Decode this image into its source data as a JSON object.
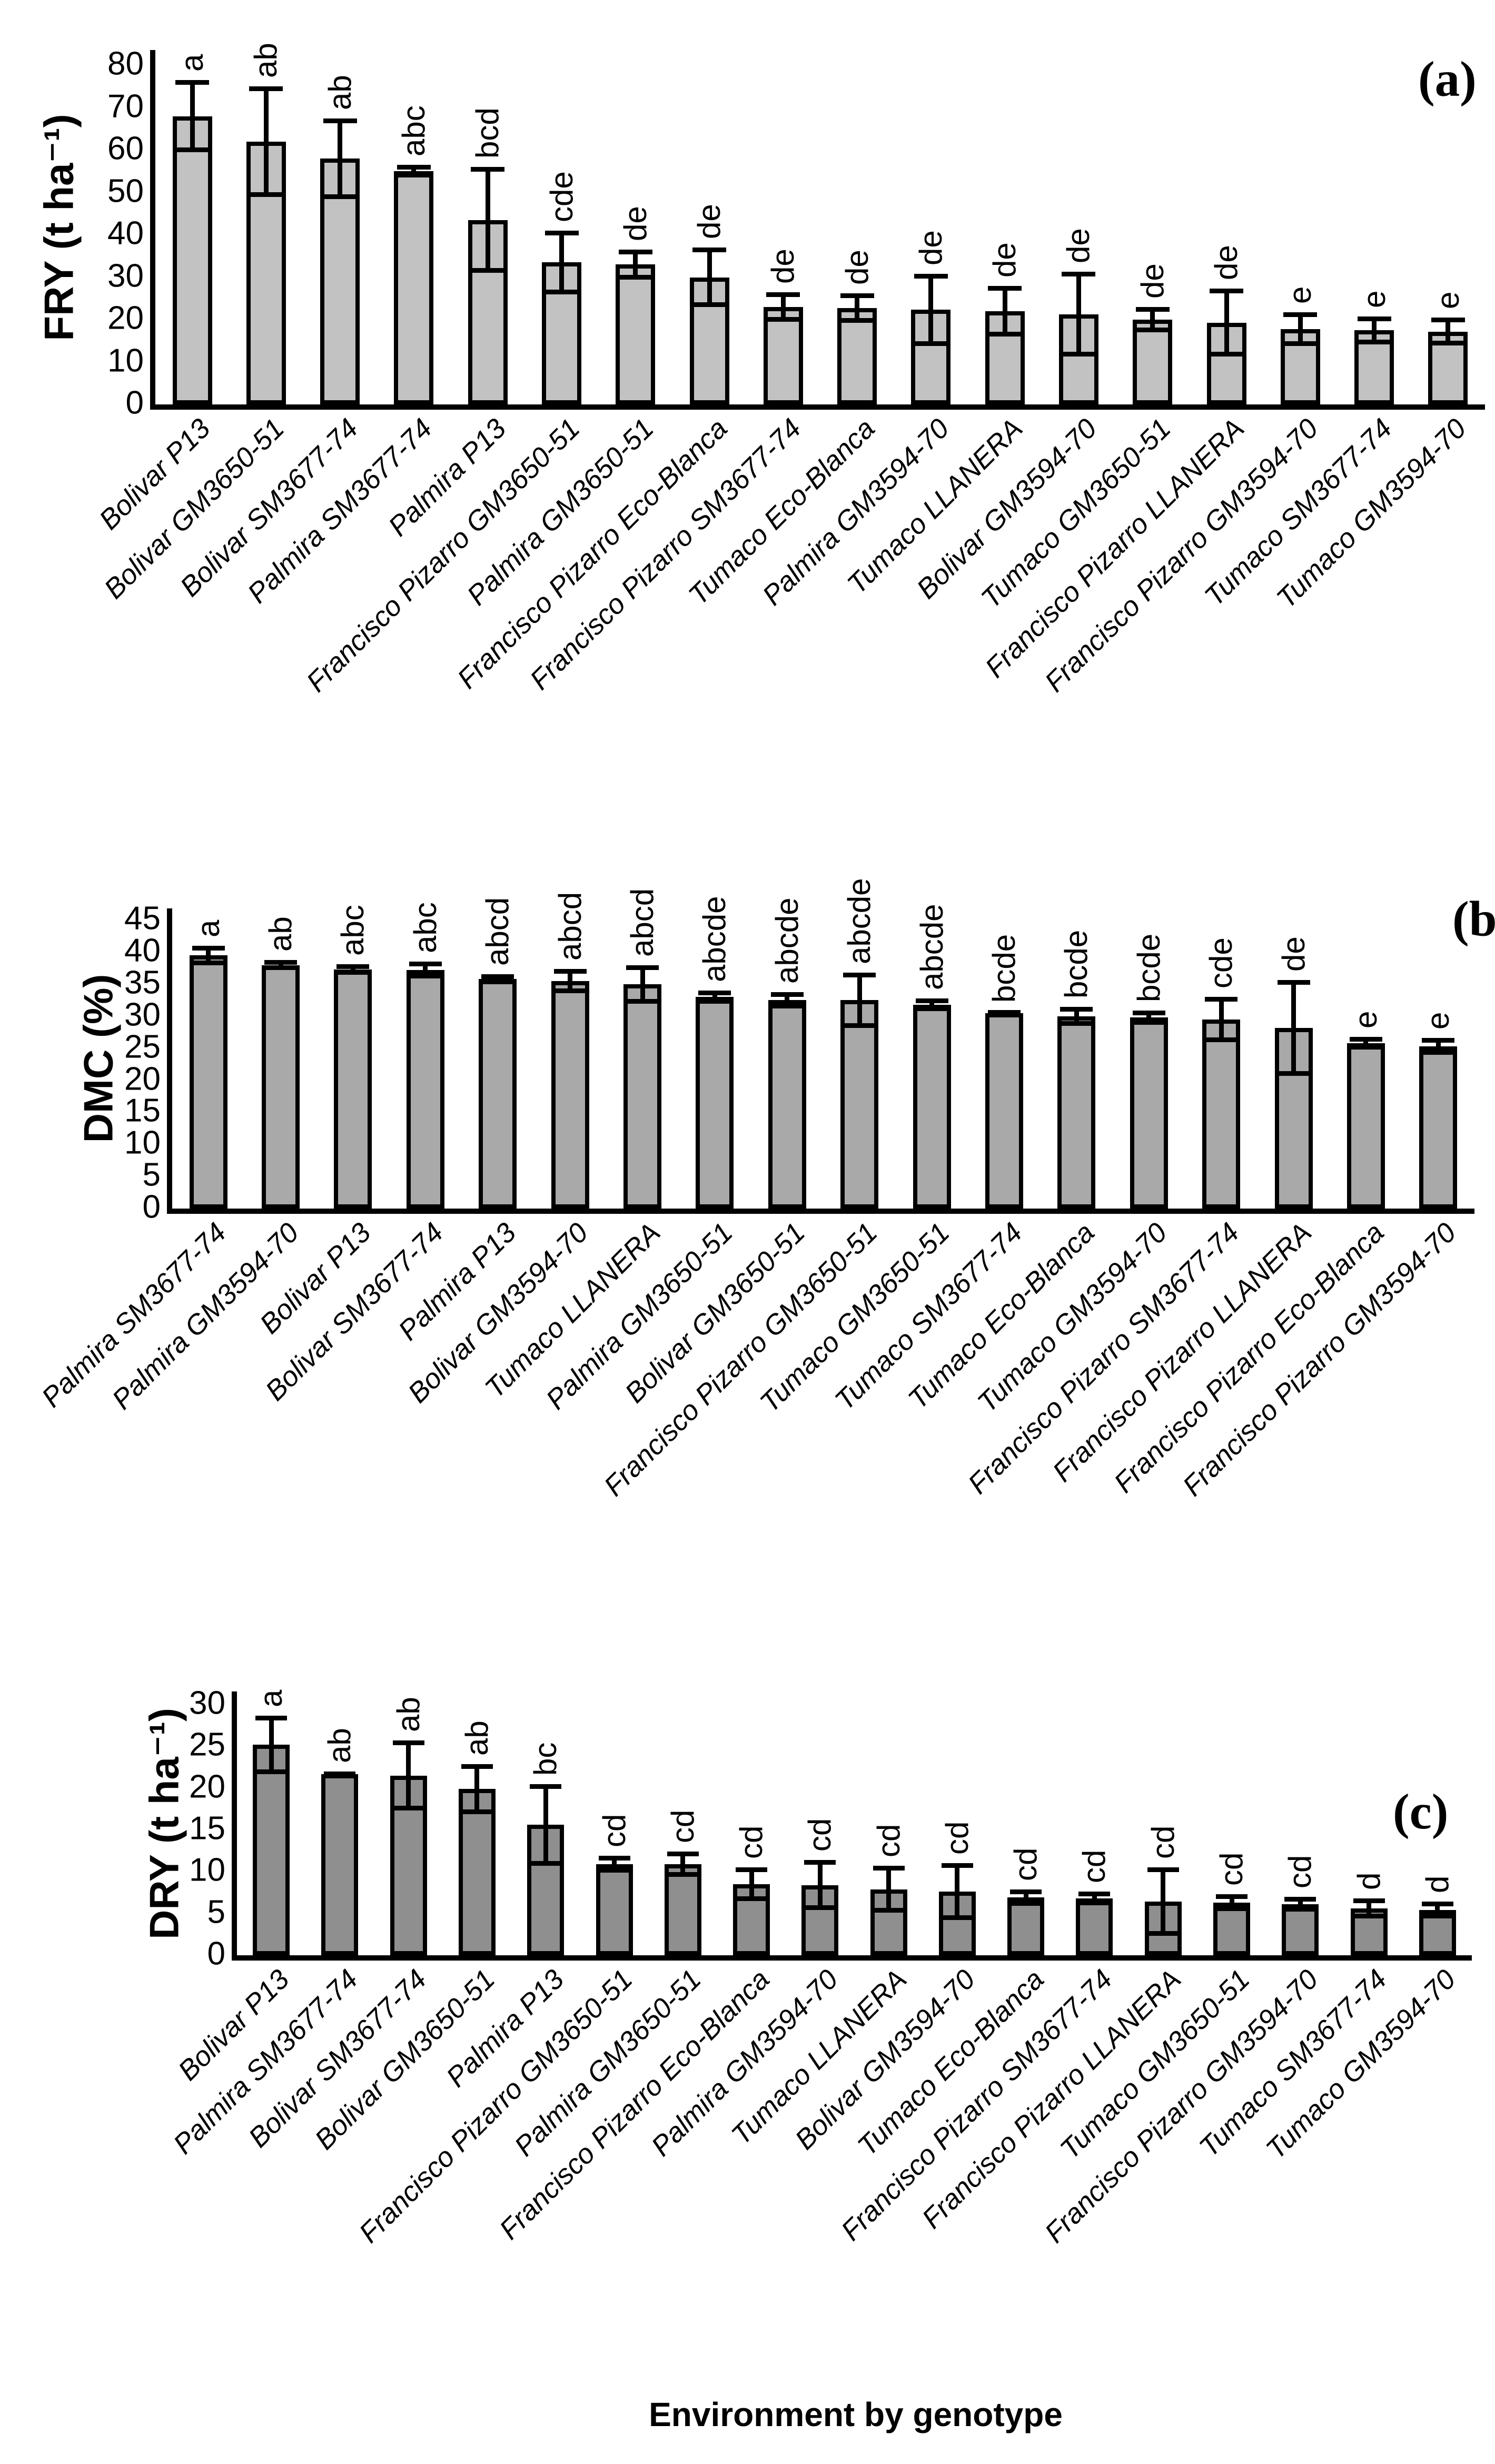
{
  "figure": {
    "xlabel": "Environment by genotype",
    "background_color": "#ffffff",
    "bar_outline_color": "#000000"
  },
  "chart_data": [
    {
      "id": "a",
      "type": "bar",
      "panel_label": "(a)",
      "ylabel": "FRY (t ha⁻¹)",
      "ylim": [
        0,
        80
      ],
      "ytick_step": 10,
      "yticks": [
        0,
        10,
        20,
        30,
        40,
        50,
        60,
        70,
        80
      ],
      "grid": false,
      "legend": null,
      "bar_color": "#c2c2c2",
      "categories": [
        "Bolivar P13",
        "Bolivar GM3650-51",
        "Bolivar SM3677-74",
        "Palmira SM3677-74",
        "Palmira P13",
        "Francisco Pizarro GM3650-51",
        "Palmira GM3650-51",
        "Francisco Pizarro Eco-Blanca",
        "Francisco Pizarro SM3677-74",
        "Tumaco Eco-Blanca",
        "Palmira GM3594-70",
        "Tumaco LLANERA",
        "Bolivar GM3594-70",
        "Tumaco GM3650-51",
        "Francisco Pizarro LLANERA",
        "Francisco Pizarro GM3594-70",
        "Tumaco SM3677-74",
        "Tumaco GM3594-70"
      ],
      "values": [
        68,
        62,
        58,
        55,
        43.5,
        33.5,
        33,
        30,
        23,
        22.7,
        22.3,
        22,
        21.3,
        20,
        19.3,
        17.8,
        17.5,
        17.2
      ],
      "errors": [
        8.5,
        13,
        9.5,
        1.5,
        12.5,
        7.5,
        3.5,
        7,
        3.5,
        3.5,
        8.5,
        6,
        10,
        3,
        8,
        4,
        3.3,
        3.3
      ],
      "sig_letters": [
        "a",
        "ab",
        "ab",
        "abc",
        "bcd",
        "cde",
        "de",
        "de",
        "de",
        "de",
        "de",
        "de",
        "de",
        "de",
        "de",
        "e",
        "e",
        "e"
      ]
    },
    {
      "id": "b",
      "type": "bar",
      "panel_label": "(b)",
      "ylabel": "DMC (%)",
      "ylim": [
        0,
        45
      ],
      "ytick_step": 5,
      "yticks": [
        0,
        5,
        10,
        15,
        20,
        25,
        30,
        35,
        40,
        45
      ],
      "grid": false,
      "legend": null,
      "bar_color": "#a9a9a9",
      "categories": [
        "Palmira SM3677-74",
        "Palmira GM3594-70",
        "Bolivar P13",
        "Bolivar SM3677-74",
        "Palmira P13",
        "Bolivar GM3594-70",
        "Tumaco LLANERA",
        "Palmira GM3650-51",
        "Bolivar GM3650-51",
        "Francisco Pizarro GM3650-51",
        "Tumaco GM3650-51",
        "Tumaco SM3677-74",
        "Tumaco Eco-Blanca",
        "Tumaco GM3594-70",
        "Francisco Pizarro SM3677-74",
        "Francisco Pizarro LLANERA",
        "Francisco Pizarro Eco-Blanca",
        "Francisco Pizarro GM3594-70"
      ],
      "values": [
        39.5,
        38,
        37.3,
        37.2,
        35.8,
        35.5,
        35,
        33,
        32.5,
        32.5,
        31.8,
        30.5,
        30,
        29.8,
        29.5,
        28.2,
        25.8,
        25.3
      ],
      "errors": [
        1.5,
        0.8,
        0.8,
        1.3,
        0.8,
        1.9,
        3.0,
        1.0,
        1.3,
        4.3,
        1.0,
        0.3,
        1.5,
        1.1,
        3.5,
        7.5,
        1.0,
        1.3
      ],
      "sig_letters": [
        "a",
        "ab",
        "abc",
        "abc",
        "abcd",
        "abcd",
        "abcd",
        "abcde",
        "abcde",
        "abcde",
        "abcde",
        "bcde",
        "bcde",
        "bcde",
        "cde",
        "de",
        "e",
        "e"
      ]
    },
    {
      "id": "c",
      "type": "bar",
      "panel_label": "(c)",
      "ylabel": "DRY (t ha⁻¹)",
      "ylim": [
        0,
        30
      ],
      "ytick_step": 5,
      "yticks": [
        0,
        5,
        10,
        15,
        20,
        25,
        30
      ],
      "grid": false,
      "legend": null,
      "bar_color": "#8f8f8f",
      "categories": [
        "Bolivar P13",
        "Palmira SM3677-74",
        "Bolivar SM3677-74",
        "Bolivar GM3650-51",
        "Palmira P13",
        "Francisco Pizarro GM3650-51",
        "Palmira GM3650-51",
        "Francisco Pizarro Eco-Blanca",
        "Palmira GM3594-70",
        "Tumaco LLANERA",
        "Bolivar GM3594-70",
        "Tumaco Eco-Blanca",
        "Francisco Pizarro SM3677-74",
        "Francisco Pizarro LLANERA",
        "Tumaco GM3650-51",
        "Francisco Pizarro GM3594-70",
        "Tumaco SM3677-74",
        "Tumaco GM3594-70"
      ],
      "values": [
        25.2,
        21.7,
        21.5,
        19.9,
        15.6,
        10.9,
        10.9,
        8.5,
        8.4,
        7.9,
        7.6,
        6.9,
        6.8,
        6.4,
        6.3,
        6.1,
        5.6,
        5.4
      ],
      "errors": [
        3.5,
        0.3,
        4.2,
        3.0,
        4.9,
        1.0,
        1.5,
        2.0,
        3.0,
        2.8,
        3.4,
        1.0,
        0.8,
        4.1,
        1.0,
        0.9,
        1.2,
        1.0
      ],
      "sig_letters": [
        "a",
        "ab",
        "ab",
        "ab",
        "bc",
        "cd",
        "cd",
        "cd",
        "cd",
        "cd",
        "cd",
        "cd",
        "cd",
        "cd",
        "cd",
        "cd",
        "d",
        "d"
      ]
    }
  ]
}
